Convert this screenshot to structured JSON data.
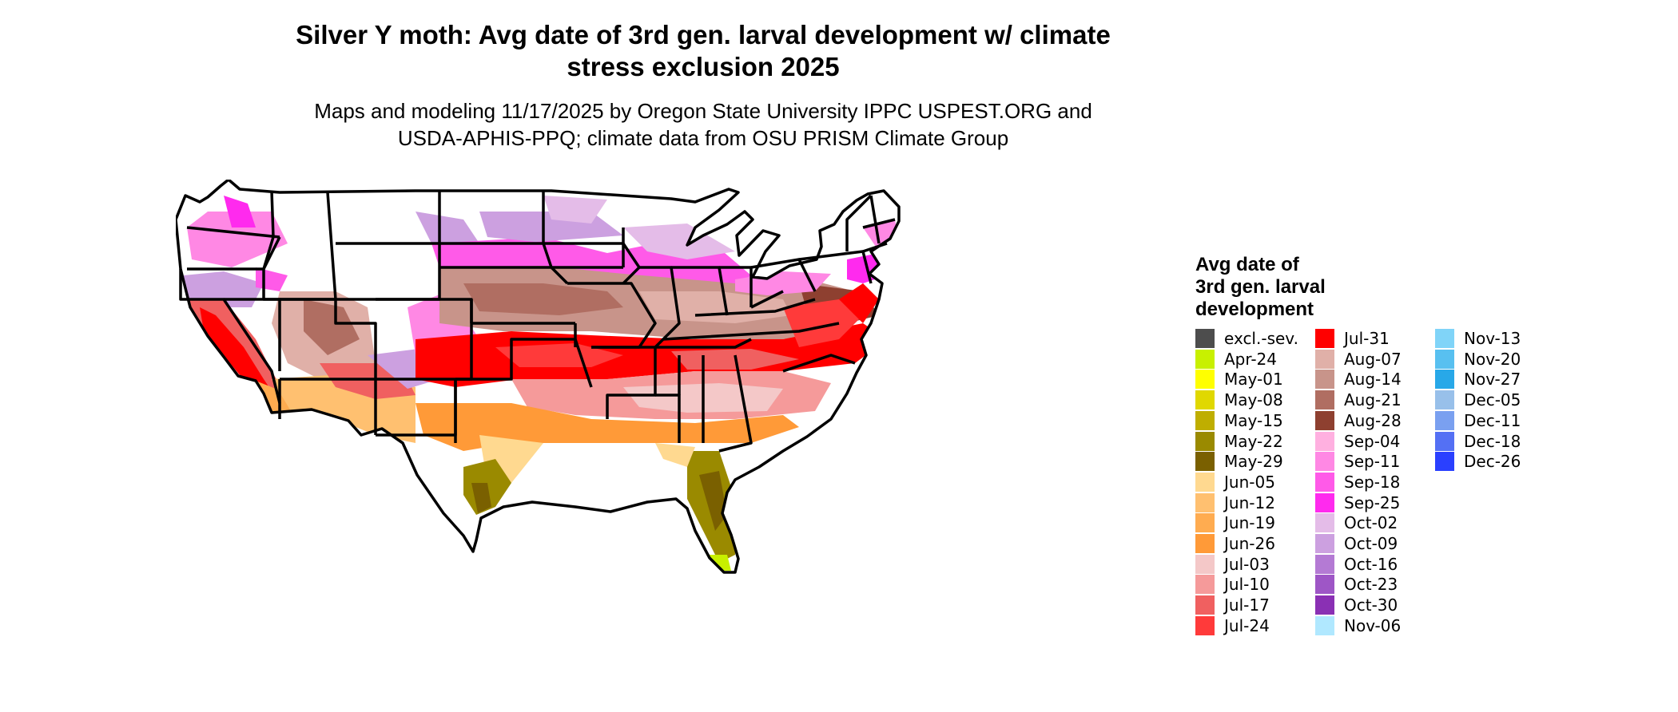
{
  "map": {
    "title": "Silver Y moth: Avg date of 3rd gen. larval development w/ climate\nstress exclusion 2025",
    "subtitle": "Maps and modeling 11/17/2025 by Oregon State University IPPC USPEST.ORG and\nUSDA-APHIS-PPQ; climate data from OSU PRISM Climate Group",
    "region": "contiguous-united-states",
    "boundaries": "state-outlines",
    "background": "#ffffff",
    "outline_color": "#000000"
  },
  "legend": {
    "title": "Avg date of\n3rd gen. larval\ndevelopment",
    "items": [
      {
        "label": "excl.-sev.",
        "color": "#4d4d4d"
      },
      {
        "label": "Apr-24",
        "color": "#c8f000"
      },
      {
        "label": "May-01",
        "color": "#ffff00"
      },
      {
        "label": "May-08",
        "color": "#e0d800"
      },
      {
        "label": "May-15",
        "color": "#bfae00"
      },
      {
        "label": "May-22",
        "color": "#9a8a00"
      },
      {
        "label": "May-29",
        "color": "#7a6000"
      },
      {
        "label": "Jun-05",
        "color": "#ffd990"
      },
      {
        "label": "Jun-12",
        "color": "#ffc070"
      },
      {
        "label": "Jun-19",
        "color": "#ffac50"
      },
      {
        "label": "Jun-26",
        "color": "#ff9a38"
      },
      {
        "label": "Jul-03",
        "color": "#f4c8c8"
      },
      {
        "label": "Jul-10",
        "color": "#f59a9a"
      },
      {
        "label": "Jul-17",
        "color": "#f06060"
      },
      {
        "label": "Jul-24",
        "color": "#ff3a3a"
      },
      {
        "label": "Jul-31",
        "color": "#ff0000"
      },
      {
        "label": "Aug-07",
        "color": "#e0b0a8"
      },
      {
        "label": "Aug-14",
        "color": "#c8948a"
      },
      {
        "label": "Aug-21",
        "color": "#b06e62"
      },
      {
        "label": "Aug-28",
        "color": "#8e4030"
      },
      {
        "label": "Sep-04",
        "color": "#ffb0e0"
      },
      {
        "label": "Sep-11",
        "color": "#ff88e4"
      },
      {
        "label": "Sep-18",
        "color": "#ff5ae8"
      },
      {
        "label": "Sep-25",
        "color": "#ff2aee"
      },
      {
        "label": "Oct-02",
        "color": "#e4bce8"
      },
      {
        "label": "Oct-09",
        "color": "#cca0e0"
      },
      {
        "label": "Oct-16",
        "color": "#b47ad4"
      },
      {
        "label": "Oct-23",
        "color": "#9e56c6"
      },
      {
        "label": "Oct-30",
        "color": "#8a30b4"
      },
      {
        "label": "Nov-06",
        "color": "#b0e8ff"
      },
      {
        "label": "Nov-13",
        "color": "#80d4f8"
      },
      {
        "label": "Nov-20",
        "color": "#58c0f0"
      },
      {
        "label": "Nov-27",
        "color": "#28a8e8"
      },
      {
        "label": "Dec-05",
        "color": "#98c0ea"
      },
      {
        "label": "Dec-11",
        "color": "#7aa0f0"
      },
      {
        "label": "Dec-18",
        "color": "#5470f4"
      },
      {
        "label": "Dec-26",
        "color": "#2a40ff"
      }
    ]
  }
}
